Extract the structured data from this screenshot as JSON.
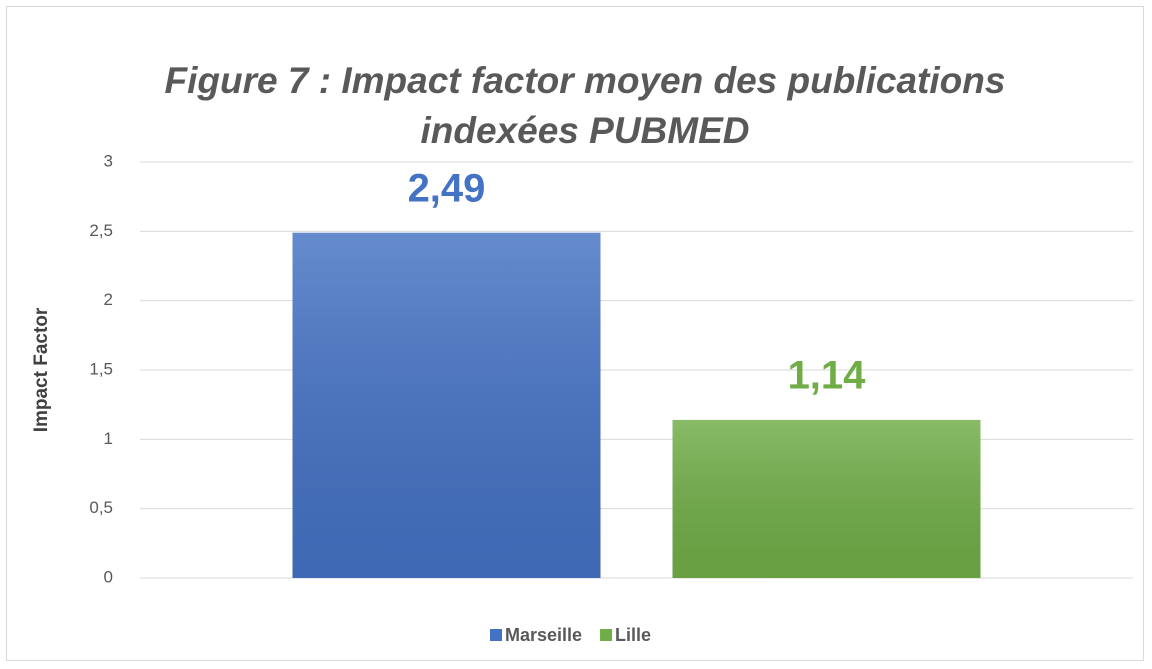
{
  "chart_data": {
    "type": "bar",
    "title": "Figure 7 : Impact factor moyen des publications indexées PUBMED",
    "y_label": "Impact Factor",
    "categories": [
      null
    ],
    "series": [
      {
        "name": "Marseille",
        "color": "#4472c4",
        "values": [
          2.49
        ],
        "value_labels": [
          "2,49"
        ]
      },
      {
        "name": "Lille",
        "color": "#70ad47",
        "values": [
          1.14
        ],
        "value_labels": [
          "1,14"
        ]
      }
    ],
    "ylim": [
      0,
      3
    ],
    "yticks": [
      0,
      {
        "value": 0.5,
        "label": "0,5"
      },
      1,
      {
        "value": 1.5,
        "label": "1,5"
      },
      2,
      {
        "value": 2.5,
        "label": "2,5"
      },
      3
    ],
    "grid": true,
    "legend": "bottom"
  }
}
